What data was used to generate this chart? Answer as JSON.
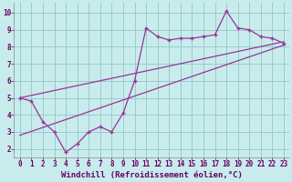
{
  "xlabel": "Windchill (Refroidissement éolien,°C)",
  "xlim": [
    -0.5,
    23.5
  ],
  "ylim": [
    1.5,
    10.6
  ],
  "xticks": [
    0,
    1,
    2,
    3,
    4,
    5,
    6,
    7,
    8,
    9,
    10,
    11,
    12,
    13,
    14,
    15,
    16,
    17,
    18,
    19,
    20,
    21,
    22,
    23
  ],
  "yticks": [
    2,
    3,
    4,
    5,
    6,
    7,
    8,
    9,
    10
  ],
  "bg_color": "#c8ecec",
  "line_color": "#993399",
  "line1_x": [
    0,
    1,
    2,
    3,
    4,
    5,
    6,
    7,
    8,
    9,
    10,
    11,
    12,
    13,
    14,
    15,
    16,
    17,
    18,
    19,
    20,
    21,
    22,
    23
  ],
  "line1_y": [
    5.0,
    4.8,
    3.6,
    3.0,
    1.8,
    2.3,
    3.0,
    3.3,
    3.0,
    4.1,
    6.0,
    9.1,
    8.6,
    8.4,
    8.5,
    8.5,
    8.6,
    8.7,
    10.1,
    9.1,
    9.0,
    8.6,
    8.5,
    8.2
  ],
  "line2_x": [
    0,
    23
  ],
  "line2_y": [
    5.0,
    8.3
  ],
  "line3_x": [
    0,
    23
  ],
  "line3_y": [
    2.8,
    8.1
  ],
  "grid_color": "#99cccc",
  "tick_fontsize": 5.5,
  "xlabel_fontsize": 6.5,
  "label_color": "#660066"
}
